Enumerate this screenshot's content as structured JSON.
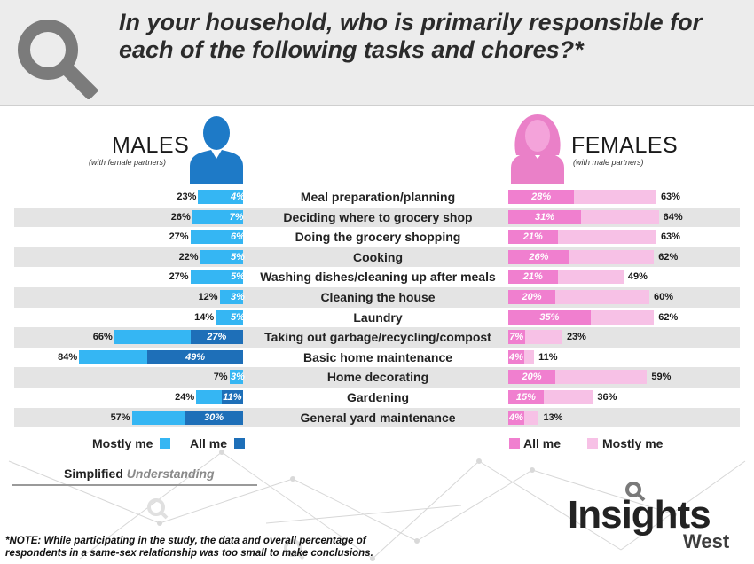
{
  "header": {
    "title": "In your household, who is primarily responsible for each of the following tasks and chores?*"
  },
  "males": {
    "title": "MALES",
    "subtitle": "(with female partners)"
  },
  "females": {
    "title": "FEMALES",
    "subtitle": "(with male partners)"
  },
  "legend": {
    "male_mostly": "Mostly me",
    "male_all": "All me",
    "female_all": "All me",
    "female_mostly": "Mostly me"
  },
  "colors": {
    "male_mostly": "#35b6f3",
    "male_all": "#1e6fb8",
    "female_all": "#f07fcf",
    "female_mostly": "#f7c1e6"
  },
  "brand": {
    "simplified": "Simplified",
    "understanding": "Understanding"
  },
  "logo": {
    "main": "Insights",
    "sub": "West"
  },
  "note": "*NOTE: While participating in the study, the data and overall percentage of respondents in a same-sex relationship was too small to make conclusions.",
  "chart_data": {
    "type": "bar",
    "categories": [
      "Meal preparation/planning",
      "Deciding where to grocery shop",
      "Doing the grocery shopping",
      "Cooking",
      "Washing dishes/cleaning up after meals",
      "Cleaning the house",
      "Laundry",
      "Taking out garbage/recycling/compost",
      "Basic home maintenance",
      "Home decorating",
      "Gardening",
      "General yard maintenance"
    ],
    "series": [
      {
        "name": "Males - All me",
        "values": [
          4,
          7,
          6,
          5,
          5,
          3,
          5,
          27,
          49,
          3,
          11,
          30
        ]
      },
      {
        "name": "Males - Mostly me",
        "values": [
          23,
          26,
          27,
          22,
          27,
          12,
          14,
          66,
          84,
          7,
          24,
          57
        ]
      },
      {
        "name": "Females - All me",
        "values": [
          28,
          31,
          21,
          26,
          21,
          20,
          35,
          7,
          4,
          20,
          15,
          4
        ]
      },
      {
        "name": "Females - Mostly me",
        "values": [
          63,
          64,
          63,
          62,
          49,
          60,
          62,
          23,
          11,
          59,
          36,
          13
        ]
      }
    ],
    "value_labels": {
      "male_all": [
        "4%",
        "7%",
        "6%",
        "5%",
        "5%",
        "3%",
        "5%",
        "27%",
        "49%",
        "3%",
        "11%",
        "30%"
      ],
      "male_mostly": [
        "23%",
        "26%",
        "27%",
        "22%",
        "27%",
        "12%",
        "14%",
        "66%",
        "84%",
        "7%",
        "24%",
        "57%"
      ],
      "female_all": [
        "28%",
        "31%",
        "21%",
        "26%",
        "21%",
        "20%",
        "35%",
        "7%",
        "4%",
        "20%",
        "15%",
        "4%"
      ],
      "female_mostly": [
        "63%",
        "64%",
        "63%",
        "62%",
        "49%",
        "60%",
        "62%",
        "23%",
        "11%",
        "59%",
        "36%",
        "13%"
      ]
    },
    "title": "",
    "xlabel": "",
    "ylabel": ""
  }
}
